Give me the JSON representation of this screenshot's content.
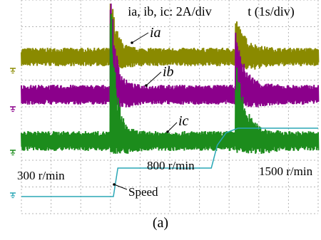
{
  "chart_data": {
    "type": "line",
    "header": {
      "currents_scale": "ia, ib, ic: 2A/div",
      "time_scale": "t (1s/div)"
    },
    "series": [
      {
        "name": "ia",
        "label": "ia",
        "color": "#8a8a00"
      },
      {
        "name": "ib",
        "label": "ib",
        "color": "#8b008b"
      },
      {
        "name": "ic",
        "label": "ic",
        "color": "#1c8c1c"
      },
      {
        "name": "Speed",
        "label": "Speed",
        "color": "#2aa7b6",
        "x": [
          0,
          3.1,
          3.25,
          6.4,
          6.6,
          6.9,
          7.3,
          10
        ],
        "y": [
          300,
          300,
          800,
          800,
          1200,
          1420,
          1500,
          1500
        ]
      }
    ],
    "annotations": [
      {
        "text": "300 r/min"
      },
      {
        "text": "800 r/min"
      },
      {
        "text": "1500 r/min"
      }
    ],
    "grid": true,
    "colors": {
      "grid": "#b4b4b4",
      "background": "#ffffff"
    }
  },
  "caption": "(a)"
}
